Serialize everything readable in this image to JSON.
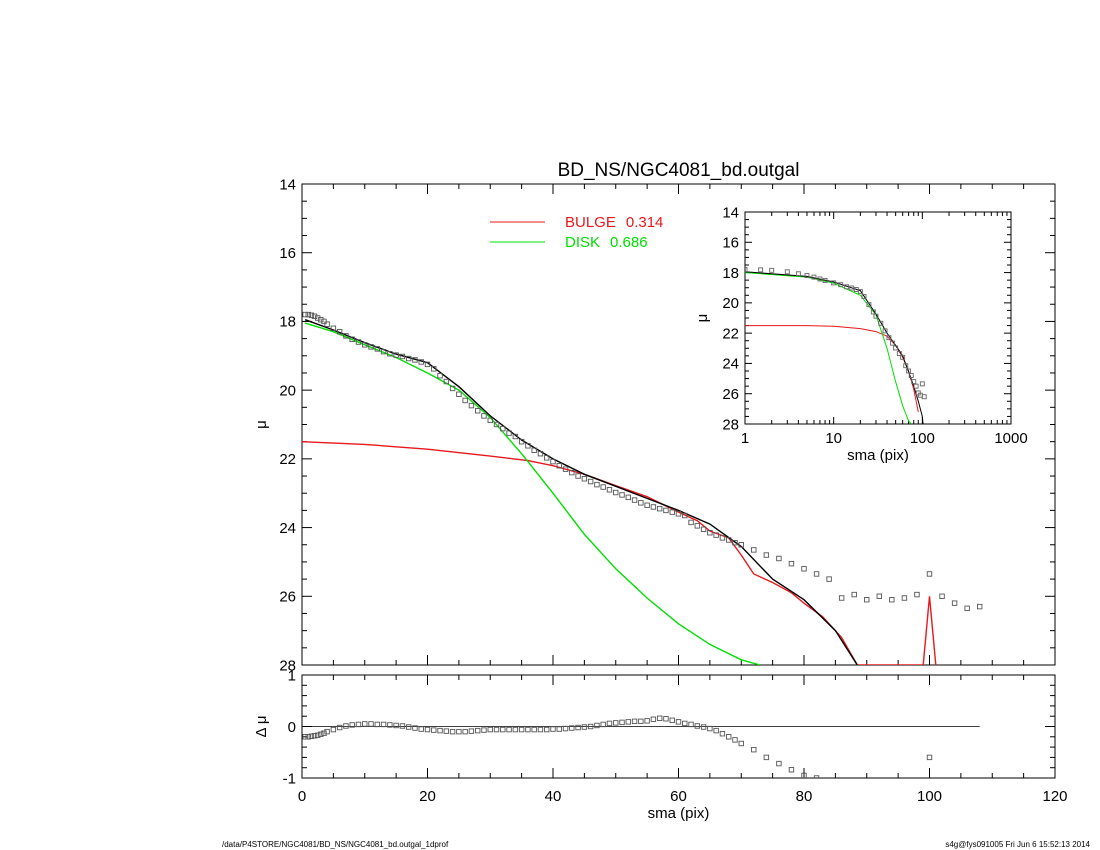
{
  "chart_data": [
    {
      "type": "line",
      "title": "BD_NS/NGC4081_bd.outgal",
      "ylabel": "μ",
      "xlim": [
        0,
        120
      ],
      "ylim": [
        28,
        14
      ],
      "x_ticks": [
        0,
        20,
        40,
        60,
        80,
        100,
        120
      ],
      "y_ticks": [
        14,
        16,
        18,
        20,
        22,
        24,
        26,
        28
      ],
      "legend_placement": "top-center",
      "series": [
        {
          "name": "BULGE",
          "legend_value": "0.314",
          "color": "#e8181c",
          "style": "line",
          "x": [
            0,
            10,
            20,
            30,
            36,
            40,
            45,
            50,
            55,
            60,
            63,
            65,
            68,
            70,
            72,
            75,
            78,
            80,
            83,
            86,
            88.5,
            99,
            100,
            101
          ],
          "y": [
            21.5,
            21.58,
            21.72,
            21.92,
            22.05,
            22.2,
            22.45,
            22.78,
            23.1,
            23.55,
            23.8,
            24.1,
            24.3,
            24.8,
            25.35,
            25.6,
            25.9,
            26.2,
            26.6,
            27.2,
            28.0,
            28.0,
            26.0,
            28.0
          ]
        },
        {
          "name": "DISK",
          "legend_value": "0.686",
          "color": "#00e000",
          "style": "line",
          "x": [
            0.5,
            5,
            10,
            15,
            20,
            25,
            30,
            35,
            40,
            45,
            50,
            55,
            60,
            65,
            70,
            73
          ],
          "y": [
            18.05,
            18.3,
            18.68,
            19.05,
            19.5,
            20.0,
            20.8,
            21.85,
            23.0,
            24.2,
            25.2,
            26.05,
            26.8,
            27.4,
            27.85,
            28.0
          ]
        },
        {
          "name": "",
          "color": "#000000",
          "style": "line",
          "x": [
            0.5,
            5,
            10,
            15,
            20,
            25,
            30,
            35,
            40,
            45,
            50,
            55,
            60,
            65,
            70,
            75,
            80,
            85,
            88.5
          ],
          "y": [
            17.95,
            18.25,
            18.62,
            18.95,
            19.2,
            19.9,
            20.75,
            21.45,
            22.0,
            22.45,
            22.8,
            23.15,
            23.5,
            23.9,
            24.55,
            25.5,
            26.1,
            27.0,
            28.0
          ]
        },
        {
          "name": "",
          "color": "#555555",
          "style": "markers",
          "x": [
            0.5,
            1,
            1.5,
            2,
            2.5,
            3,
            3.5,
            4,
            5,
            6,
            7,
            8,
            9,
            10,
            11,
            12,
            13,
            14,
            15,
            16,
            17,
            18,
            19,
            20,
            21,
            22,
            23,
            24,
            25,
            26,
            27,
            28,
            29,
            30,
            31,
            32,
            33,
            34,
            35,
            36,
            37,
            38,
            39,
            40,
            41,
            42,
            43,
            44,
            45,
            46,
            47,
            48,
            49,
            50,
            51,
            52,
            53,
            54,
            55,
            56,
            57,
            58,
            59,
            60,
            61,
            62,
            63,
            64,
            65,
            66,
            67,
            68,
            69,
            70,
            72,
            74,
            76,
            78,
            80,
            82,
            84,
            86,
            88,
            90,
            92,
            94,
            96,
            98,
            100,
            102,
            104,
            106,
            108
          ],
          "y": [
            17.8,
            17.8,
            17.82,
            17.85,
            17.9,
            17.95,
            18.0,
            18.08,
            18.2,
            18.3,
            18.42,
            18.52,
            18.6,
            18.68,
            18.74,
            18.8,
            18.88,
            18.94,
            18.98,
            19.02,
            19.08,
            19.12,
            19.18,
            19.25,
            19.38,
            19.58,
            19.75,
            19.95,
            20.12,
            20.3,
            20.45,
            20.6,
            20.75,
            20.88,
            21.0,
            21.12,
            21.25,
            21.35,
            21.5,
            21.62,
            21.75,
            21.85,
            21.97,
            22.08,
            22.2,
            22.3,
            22.4,
            22.5,
            22.58,
            22.66,
            22.75,
            22.82,
            22.9,
            22.98,
            23.05,
            23.12,
            23.2,
            23.28,
            23.35,
            23.4,
            23.45,
            23.5,
            23.55,
            23.6,
            23.65,
            23.85,
            23.95,
            24.05,
            24.15,
            24.22,
            24.3,
            24.36,
            24.44,
            24.5,
            24.65,
            24.8,
            24.9,
            25.05,
            25.2,
            25.35,
            25.5,
            26.05,
            25.95,
            26.1,
            26.0,
            26.1,
            26.05,
            25.95,
            25.35,
            26.0,
            26.2,
            26.35,
            26.3
          ]
        }
      ]
    },
    {
      "type": "line",
      "xlabel": "sma (pix)",
      "ylabel": "μ",
      "xscale": "log",
      "xlim": [
        1,
        1000
      ],
      "ylim": [
        28,
        14
      ],
      "x_ticks": [
        1,
        10,
        100,
        1000
      ],
      "y_ticks": [
        14,
        16,
        18,
        20,
        22,
        24,
        26,
        28
      ],
      "series": [
        {
          "name": "BULGE",
          "color": "#e8181c",
          "style": "line",
          "x": [
            1,
            5,
            10,
            20,
            30,
            40,
            50,
            60,
            70,
            80,
            90
          ],
          "y": [
            21.5,
            21.5,
            21.55,
            21.7,
            21.9,
            22.2,
            22.8,
            23.6,
            24.5,
            25.7,
            27.2
          ]
        },
        {
          "name": "DISK",
          "color": "#00e000",
          "style": "line",
          "x": [
            1,
            5,
            10,
            20,
            30,
            40,
            50,
            60,
            70,
            75
          ],
          "y": [
            18.0,
            18.3,
            18.7,
            19.5,
            20.8,
            23.0,
            25.2,
            26.8,
            27.8,
            28.0
          ]
        },
        {
          "name": "",
          "color": "#000000",
          "style": "line",
          "x": [
            1,
            5,
            10,
            20,
            30,
            40,
            50,
            60,
            70,
            80,
            90,
            100,
            102
          ],
          "y": [
            17.95,
            18.25,
            18.62,
            19.2,
            20.75,
            22.0,
            22.8,
            23.5,
            24.55,
            25.5,
            26.5,
            27.5,
            28.0
          ]
        },
        {
          "name": "",
          "color": "#666666",
          "style": "markers",
          "x": [
            1,
            1.5,
            2,
            3,
            4,
            5,
            6,
            7,
            8,
            10,
            12,
            14,
            16,
            18,
            20,
            22,
            25,
            28,
            30,
            34,
            38,
            42,
            46,
            50,
            55,
            60,
            65,
            70,
            75,
            80,
            85,
            90,
            95,
            100,
            105
          ],
          "y": [
            17.8,
            17.82,
            17.85,
            17.95,
            18.08,
            18.2,
            18.3,
            18.42,
            18.52,
            18.68,
            18.8,
            18.94,
            19.02,
            19.12,
            19.25,
            19.58,
            20.12,
            20.6,
            20.88,
            21.35,
            21.85,
            22.3,
            22.66,
            22.98,
            23.35,
            23.6,
            24.15,
            24.5,
            24.8,
            25.2,
            25.5,
            25.95,
            26.1,
            25.35,
            26.2
          ]
        }
      ]
    },
    {
      "type": "scatter",
      "xlabel": "sma (pix)",
      "ylabel": "Δ μ",
      "xlim": [
        0,
        120
      ],
      "ylim": [
        -1,
        1
      ],
      "x_ticks": [
        0,
        20,
        40,
        60,
        80,
        100,
        120
      ],
      "y_ticks": [
        -1,
        0,
        1
      ],
      "reference_line": {
        "y": 0,
        "x": [
          0,
          108
        ]
      },
      "series": [
        {
          "name": "",
          "color": "#555555",
          "style": "markers",
          "x": [
            0.5,
            1,
            1.5,
            2,
            2.5,
            3,
            3.5,
            4,
            5,
            6,
            7,
            8,
            9,
            10,
            11,
            12,
            13,
            14,
            15,
            16,
            17,
            18,
            19,
            20,
            21,
            22,
            23,
            24,
            25,
            26,
            27,
            28,
            29,
            30,
            31,
            32,
            33,
            34,
            35,
            36,
            37,
            38,
            39,
            40,
            41,
            42,
            43,
            44,
            45,
            46,
            47,
            48,
            49,
            50,
            51,
            52,
            53,
            54,
            55,
            56,
            57,
            58,
            59,
            60,
            61,
            62,
            63,
            64,
            65,
            66,
            67,
            68,
            69,
            70,
            72,
            74,
            76,
            78,
            80,
            82,
            84,
            100
          ],
          "y": [
            -0.2,
            -0.2,
            -0.19,
            -0.18,
            -0.17,
            -0.15,
            -0.13,
            -0.1,
            -0.06,
            -0.02,
            0.01,
            0.03,
            0.04,
            0.05,
            0.05,
            0.04,
            0.04,
            0.03,
            0.02,
            0.01,
            -0.01,
            -0.03,
            -0.05,
            -0.06,
            -0.07,
            -0.08,
            -0.09,
            -0.1,
            -0.1,
            -0.1,
            -0.09,
            -0.08,
            -0.07,
            -0.06,
            -0.06,
            -0.06,
            -0.06,
            -0.06,
            -0.06,
            -0.06,
            -0.06,
            -0.06,
            -0.06,
            -0.05,
            -0.05,
            -0.04,
            -0.03,
            -0.02,
            -0.01,
            0.0,
            0.02,
            0.04,
            0.06,
            0.07,
            0.08,
            0.09,
            0.1,
            0.1,
            0.11,
            0.14,
            0.16,
            0.15,
            0.12,
            0.09,
            0.06,
            0.04,
            0.01,
            -0.01,
            -0.04,
            -0.08,
            -0.14,
            -0.2,
            -0.26,
            -0.33,
            -0.45,
            -0.6,
            -0.72,
            -0.84,
            -0.95,
            -1.0,
            -1.1,
            -0.6
          ]
        }
      ]
    }
  ],
  "footer": {
    "left": "/data/P4STORE/NGC4081/BD_NS/NGC4081_bd.outgal_1dprof",
    "right": "s4g@fys091005  Fri Jun  6 15:52:13 2014"
  }
}
